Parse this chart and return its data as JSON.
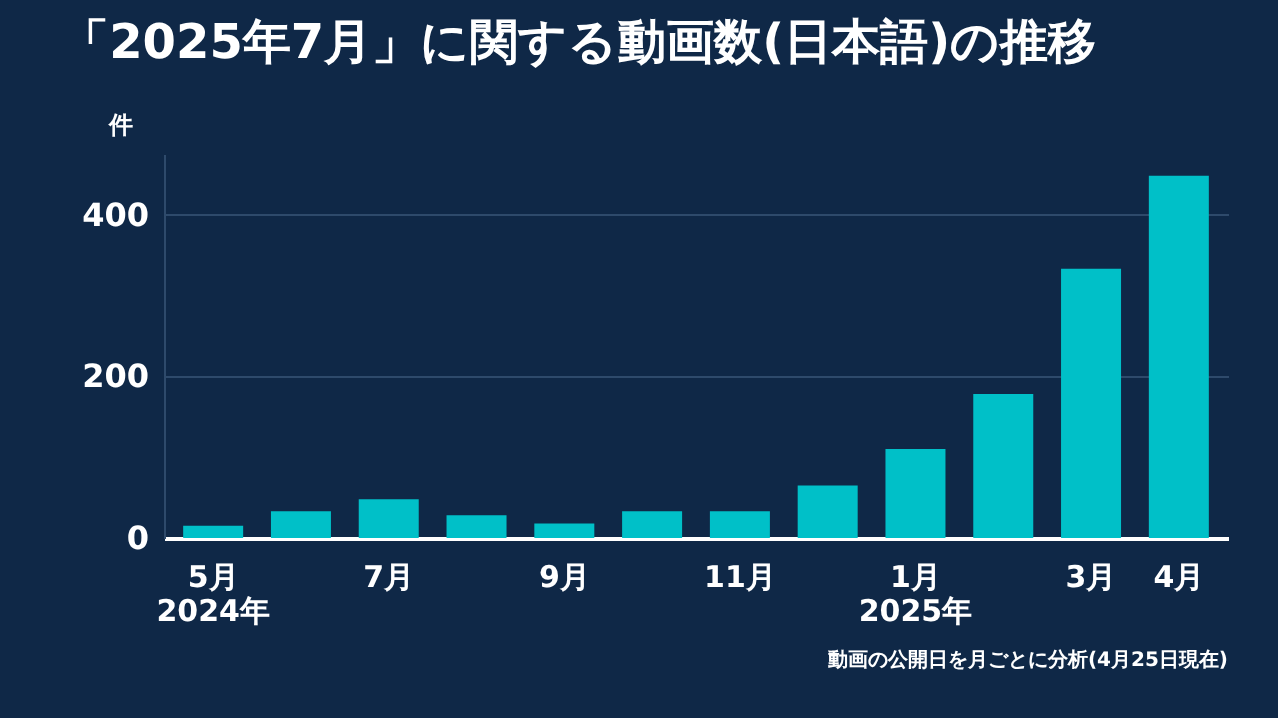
{
  "chart_data": {
    "type": "bar",
    "title": "「2025年7月」に関する動画数(日本語)の推移",
    "ylabel": "件",
    "categories": [
      "5月\n2024年",
      null,
      "7月",
      null,
      "9月",
      null,
      "11月",
      null,
      "1月\n2025年",
      null,
      "3月",
      "4月"
    ],
    "values": [
      15,
      33,
      48,
      28,
      18,
      33,
      33,
      65,
      110,
      178,
      333,
      448
    ],
    "color": "#00c0c8",
    "ylim": [
      0,
      475
    ],
    "yticks": [
      0,
      200,
      400
    ],
    "grid": "y",
    "annotations": [
      "動画の公開日を月ごとに分析(4月25日現在)"
    ]
  }
}
